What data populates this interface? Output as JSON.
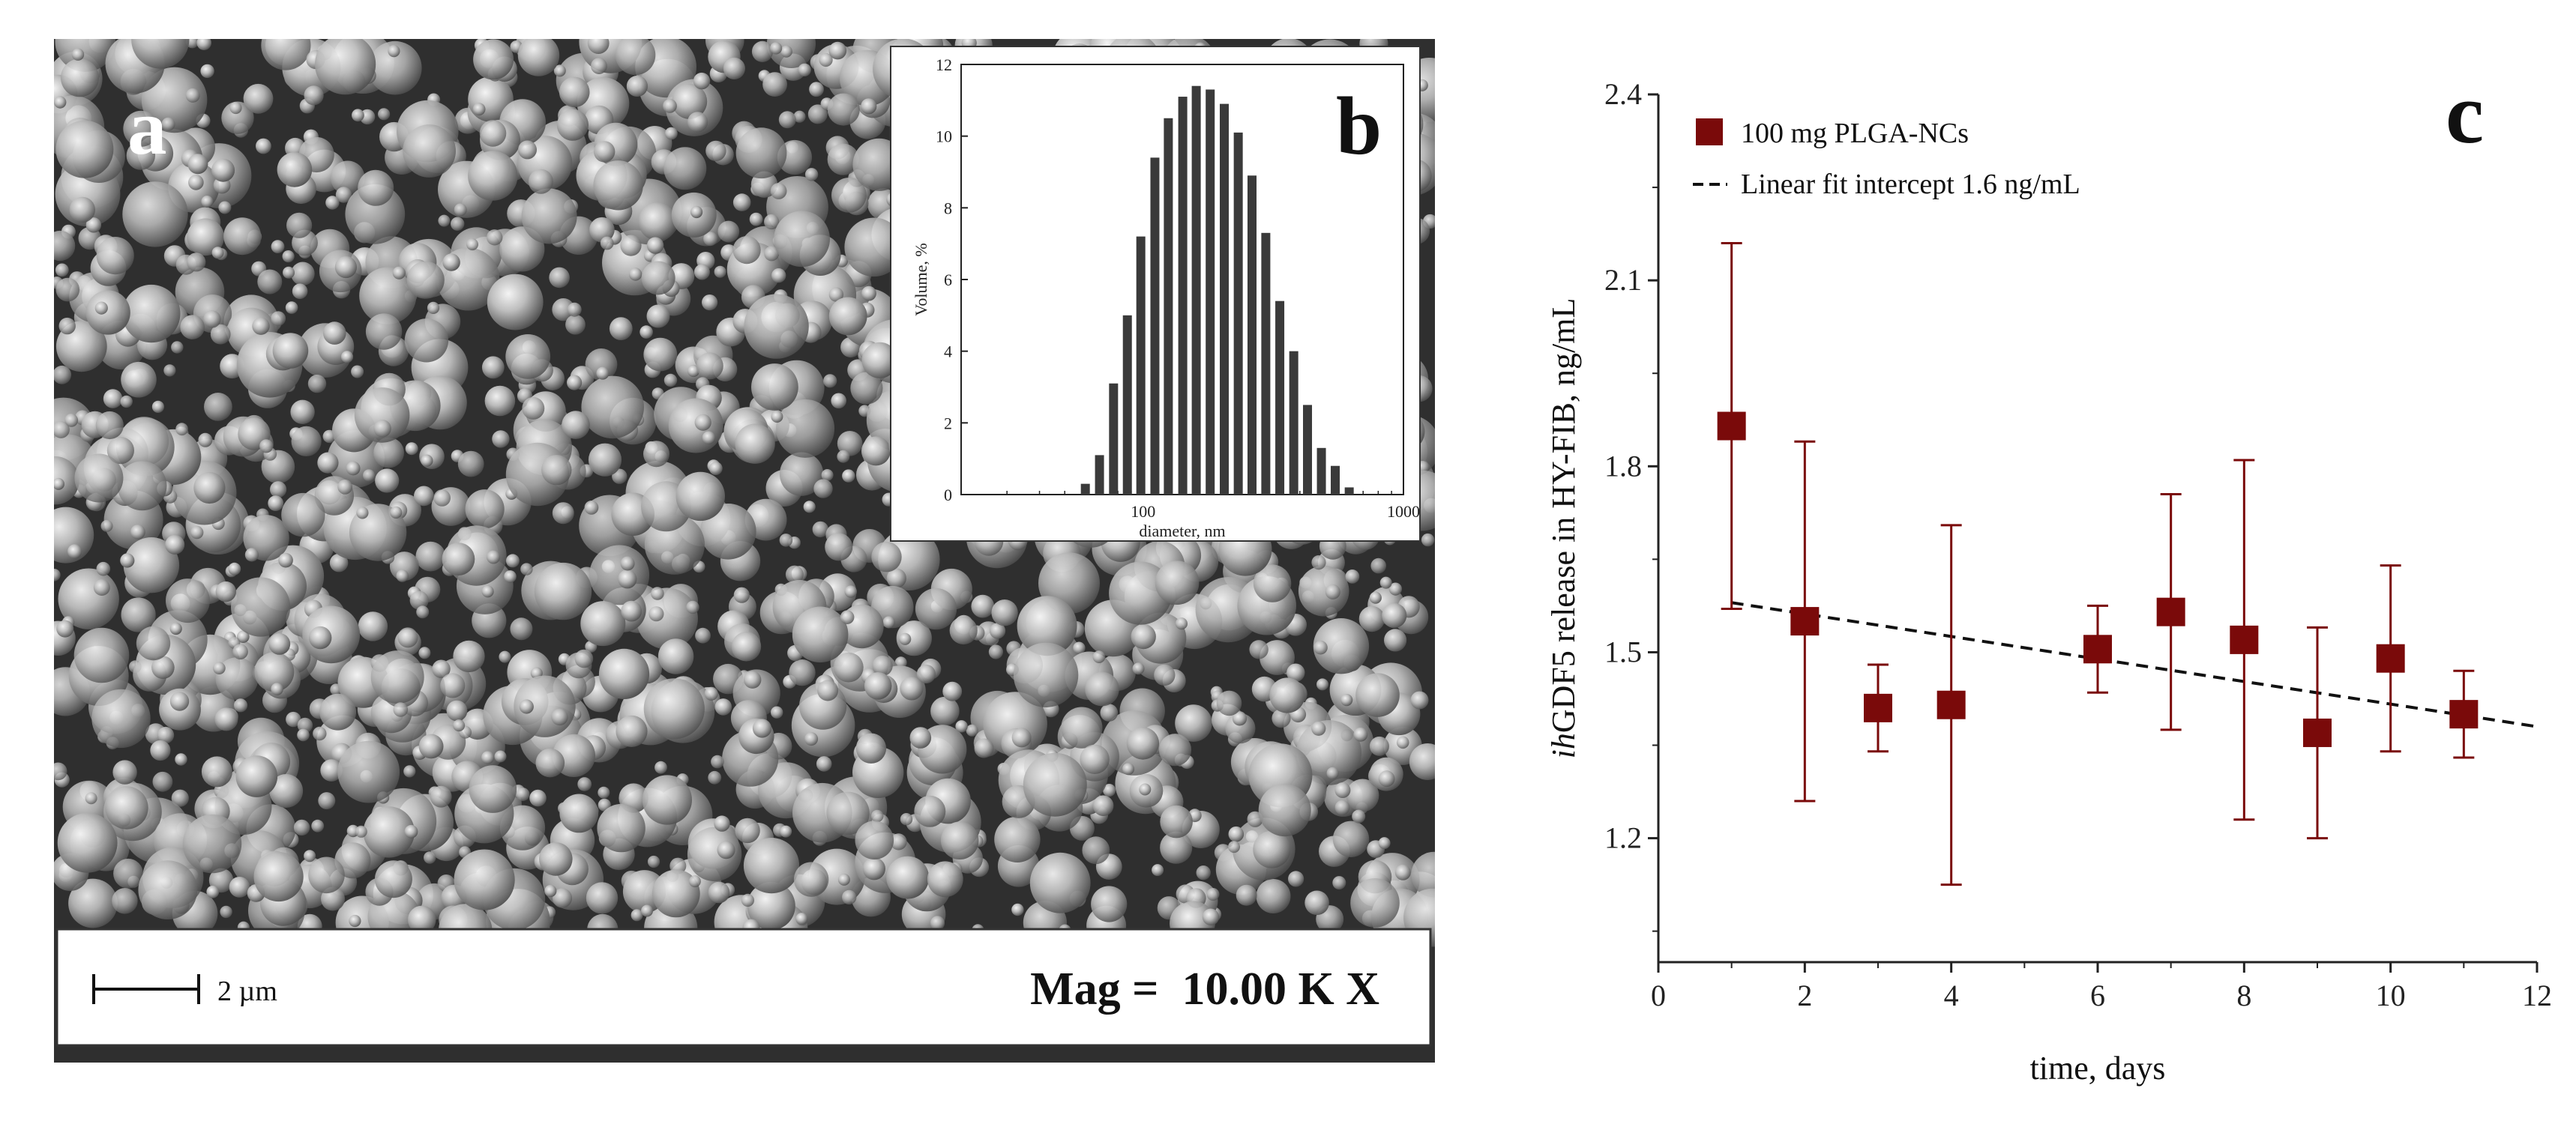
{
  "panel_a": {
    "label": "a",
    "scale_bar_label": "2 µm",
    "magnification": "Mag =  10.00 K X"
  },
  "chart_data": [
    {
      "panel": "b",
      "type": "bar",
      "title": "",
      "xlabel": "diameter, nm",
      "ylabel": "Volume, %",
      "xscale": "log",
      "xlim": [
        20,
        1000
      ],
      "ylim": [
        0,
        12
      ],
      "xticks": [
        100,
        1000
      ],
      "xtick_labels": [
        "100",
        "1000"
      ],
      "yticks": [
        0,
        2,
        4,
        6,
        8,
        10,
        12
      ],
      "x": [
        60,
        68,
        77,
        87,
        98,
        111,
        125,
        142,
        160,
        181,
        205,
        232,
        262,
        296,
        335,
        379,
        428,
        484,
        547,
        619,
        700
      ],
      "values": [
        0.3,
        1.1,
        3.1,
        5.0,
        7.2,
        9.4,
        10.5,
        11.1,
        11.4,
        11.3,
        10.9,
        10.1,
        8.9,
        7.3,
        5.4,
        4.0,
        2.5,
        1.3,
        0.8,
        0.2,
        0.0
      ],
      "grid": false
    },
    {
      "panel": "c",
      "type": "scatter",
      "title": "",
      "xlabel": "time, days",
      "ylabel_italic": "ih",
      "ylabel_rest": "GDF5 release in HY-FIB, ng/mL",
      "xlim": [
        0,
        12
      ],
      "ylim": [
        1.0,
        2.4
      ],
      "xticks": [
        0,
        2,
        4,
        6,
        8,
        10,
        12
      ],
      "yticks": [
        1.2,
        1.5,
        1.8,
        2.1,
        2.4
      ],
      "ytick_labels": [
        "1.2",
        "1.5",
        "1.8",
        "2.1",
        "2.4"
      ],
      "series": [
        {
          "name": "100 mg PLGA-NCs",
          "color": "#7a0a0a",
          "x": [
            1,
            2,
            3,
            4,
            6,
            7,
            8,
            9,
            10,
            11
          ],
          "y": [
            1.865,
            1.55,
            1.41,
            1.415,
            1.505,
            1.565,
            1.52,
            1.37,
            1.49,
            1.4
          ],
          "err_low": [
            0.295,
            0.29,
            0.07,
            0.29,
            0.07,
            0.19,
            0.29,
            0.17,
            0.15,
            0.07
          ],
          "err_high": [
            0.295,
            0.29,
            0.07,
            0.29,
            0.07,
            0.19,
            0.29,
            0.17,
            0.15,
            0.07
          ]
        }
      ],
      "fit": {
        "name": "Linear fit intercept 1.6 ng/mL",
        "x": [
          1,
          12
        ],
        "y": [
          1.58,
          1.38
        ]
      },
      "legend": "top-left",
      "grid": false
    }
  ],
  "panel_labels": {
    "b": "b",
    "c": "c"
  }
}
